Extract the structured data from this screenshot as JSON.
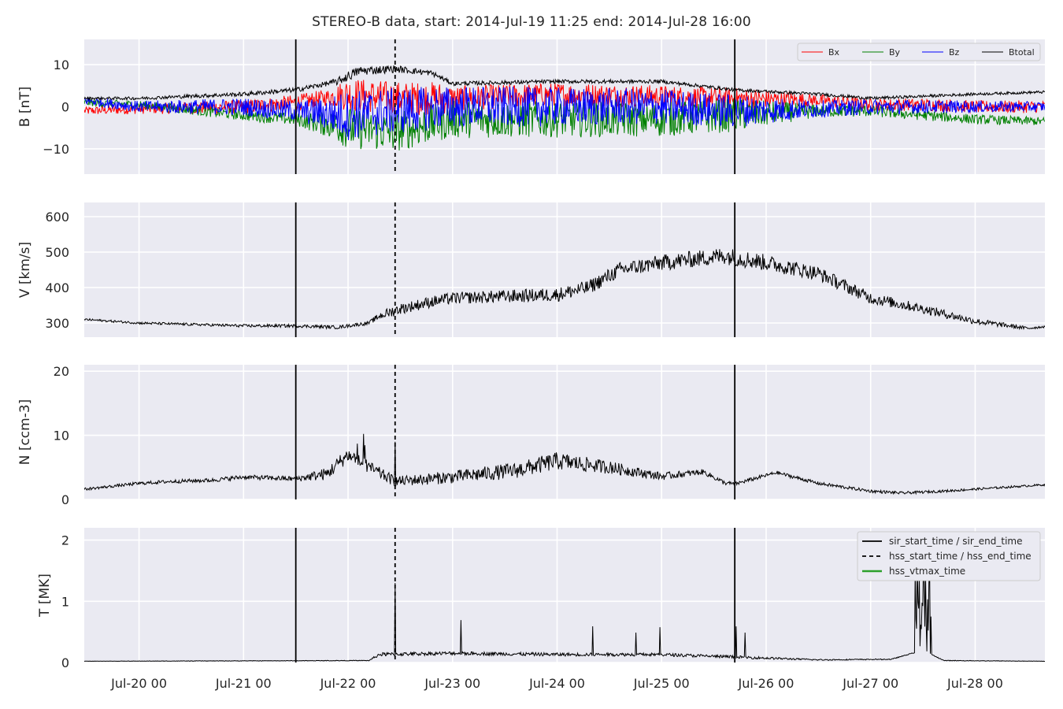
{
  "title": "STEREO-B data, start: 2014-Jul-19 11:25  end: 2014-Jul-28 16:00",
  "chart_data": {
    "type": "line",
    "x_axis": {
      "unit": "day (Jul 2014)",
      "range": [
        19.476,
        28.667
      ],
      "ticks": [
        20,
        21,
        22,
        23,
        24,
        25,
        26,
        27,
        28
      ],
      "tick_labels": [
        "Jul-20 00",
        "Jul-21 00",
        "Jul-22 00",
        "Jul-23 00",
        "Jul-24 00",
        "Jul-25 00",
        "Jul-26 00",
        "Jul-27 00",
        "Jul-28 00"
      ]
    },
    "markers": [
      {
        "label": "sir_start_time / sir_end_time",
        "style": "solid",
        "color": "#000000",
        "times": [
          21.5,
          25.7
        ]
      },
      {
        "label": "hss_start_time / hss_end_time",
        "style": "dashed",
        "color": "#000000",
        "times": [
          22.45
        ]
      },
      {
        "label": "hss_vtmax_time",
        "style": "solid",
        "color": "#2ca02c",
        "times": []
      }
    ],
    "panels": [
      {
        "id": "B",
        "ylabel": "B [nT]",
        "ylim": [
          -16,
          16
        ],
        "yticks": [
          -10,
          0,
          10
        ],
        "ytick_labels": [
          "−10",
          "0",
          "10"
        ],
        "legend": "top-right-row",
        "series": [
          {
            "name": "Bx",
            "color": "#ff0000",
            "base": [
              [
                19.48,
                -1
              ],
              [
                20,
                -0.5
              ],
              [
                21,
                0
              ],
              [
                21.5,
                1
              ],
              [
                22,
                3
              ],
              [
                22.45,
                2
              ],
              [
                23,
                2
              ],
              [
                24,
                3
              ],
              [
                25,
                2.5
              ],
              [
                25.7,
                2
              ],
              [
                26.5,
                1.5
              ],
              [
                27,
                0.5
              ],
              [
                27.5,
                0.5
              ],
              [
                28,
                0
              ],
              [
                28.67,
                0
              ]
            ],
            "noise": [
              [
                19.48,
                1
              ],
              [
                21.8,
                2
              ],
              [
                22,
                4
              ],
              [
                22.9,
                4
              ],
              [
                23,
                3
              ],
              [
                25.7,
                2.5
              ],
              [
                26.5,
                1.5
              ],
              [
                28.67,
                1.5
              ]
            ]
          },
          {
            "name": "By",
            "color": "#008000",
            "base": [
              [
                19.48,
                1
              ],
              [
                20,
                0.5
              ],
              [
                21,
                -2
              ],
              [
                21.5,
                -3
              ],
              [
                22,
                -5
              ],
              [
                22.45,
                -6
              ],
              [
                23,
                -3
              ],
              [
                24,
                -3
              ],
              [
                25,
                -3
              ],
              [
                25.7,
                -2
              ],
              [
                26.5,
                -1
              ],
              [
                27,
                -1
              ],
              [
                27.5,
                -2
              ],
              [
                28,
                -3
              ],
              [
                28.67,
                -3.5
              ]
            ],
            "noise": [
              [
                19.48,
                0.8
              ],
              [
                21.5,
                1.5
              ],
              [
                21.8,
                3
              ],
              [
                22,
                5
              ],
              [
                23,
                4.5
              ],
              [
                25.7,
                4
              ],
              [
                26.5,
                1.5
              ],
              [
                28.67,
                1
              ]
            ]
          },
          {
            "name": "Bz",
            "color": "#0000ff",
            "base": [
              [
                19.48,
                1.5
              ],
              [
                20,
                0
              ],
              [
                21,
                0
              ],
              [
                21.5,
                -1
              ],
              [
                22,
                -2
              ],
              [
                22.45,
                -1
              ],
              [
                23,
                0
              ],
              [
                24,
                0
              ],
              [
                25,
                0
              ],
              [
                25.7,
                -1
              ],
              [
                26.5,
                -0.5
              ],
              [
                27,
                0
              ],
              [
                28,
                0
              ],
              [
                28.67,
                0
              ]
            ],
            "noise": [
              [
                19.48,
                1
              ],
              [
                21.5,
                2.5
              ],
              [
                21.8,
                4
              ],
              [
                22,
                6
              ],
              [
                23,
                5
              ],
              [
                25.7,
                4
              ],
              [
                26.5,
                2
              ],
              [
                28.67,
                1.2
              ]
            ]
          },
          {
            "name": "Btotal",
            "color": "#000000",
            "base": [
              [
                19.48,
                2
              ],
              [
                20,
                2
              ],
              [
                21,
                3
              ],
              [
                21.5,
                4
              ],
              [
                21.9,
                6
              ],
              [
                22.1,
                8.5
              ],
              [
                22.45,
                9
              ],
              [
                22.8,
                8
              ],
              [
                23,
                5.5
              ],
              [
                24,
                6
              ],
              [
                25,
                6
              ],
              [
                25.7,
                4
              ],
              [
                26.5,
                3
              ],
              [
                27,
                2
              ],
              [
                28,
                3
              ],
              [
                28.67,
                3.5
              ]
            ],
            "noise": [
              [
                19.48,
                0.3
              ],
              [
                21.8,
                0.6
              ],
              [
                22,
                1.2
              ],
              [
                23,
                0.5
              ],
              [
                28.67,
                0.3
              ]
            ]
          }
        ]
      },
      {
        "id": "V",
        "ylabel": "V [km/s]",
        "ylim": [
          260,
          640
        ],
        "yticks": [
          300,
          400,
          500,
          600
        ],
        "ytick_labels": [
          "300",
          "400",
          "500",
          "600"
        ],
        "series": [
          {
            "name": "V",
            "color": "#000000",
            "base": [
              [
                19.48,
                310
              ],
              [
                20,
                300
              ],
              [
                21,
                292
              ],
              [
                21.5,
                292
              ],
              [
                21.9,
                288
              ],
              [
                22.2,
                300
              ],
              [
                22.3,
                320
              ],
              [
                22.5,
                340
              ],
              [
                22.8,
                360
              ],
              [
                23,
                370
              ],
              [
                23.5,
                375
              ],
              [
                24,
                380
              ],
              [
                24.3,
                400
              ],
              [
                24.6,
                450
              ],
              [
                25,
                470
              ],
              [
                25.3,
                480
              ],
              [
                25.6,
                490
              ],
              [
                26,
                470
              ],
              [
                26.5,
                440
              ],
              [
                27,
                370
              ],
              [
                27.5,
                340
              ],
              [
                28,
                305
              ],
              [
                28.5,
                285
              ],
              [
                28.67,
                290
              ]
            ],
            "noise": [
              [
                19.48,
                3
              ],
              [
                22.2,
                5
              ],
              [
                22.4,
                15
              ],
              [
                25.8,
                25
              ],
              [
                27.7,
                12
              ],
              [
                28.67,
                3
              ]
            ]
          }
        ]
      },
      {
        "id": "N",
        "ylabel": "N [ccm-3]",
        "ylim": [
          0,
          21
        ],
        "yticks": [
          0,
          10,
          20
        ],
        "ytick_labels": [
          "0",
          "10",
          "20"
        ],
        "series": [
          {
            "name": "N",
            "color": "#000000",
            "base": [
              [
                19.48,
                1.6
              ],
              [
                20,
                2.5
              ],
              [
                20.3,
                2.8
              ],
              [
                20.7,
                3
              ],
              [
                21,
                3.5
              ],
              [
                21.5,
                3.2
              ],
              [
                21.8,
                4
              ],
              [
                22,
                7
              ],
              [
                22.2,
                5
              ],
              [
                22.45,
                2.8
              ],
              [
                23,
                3.5
              ],
              [
                23.6,
                4.5
              ],
              [
                24,
                6
              ],
              [
                24.5,
                5
              ],
              [
                25,
                3.6
              ],
              [
                25.4,
                4.3
              ],
              [
                25.6,
                2.6
              ],
              [
                25.7,
                2.4
              ],
              [
                26.1,
                4.2
              ],
              [
                26.5,
                2.5
              ],
              [
                27,
                1.3
              ],
              [
                27.3,
                1
              ],
              [
                27.7,
                1.3
              ],
              [
                28,
                1.6
              ],
              [
                28.67,
                2.3
              ]
            ],
            "noise": [
              [
                19.48,
                0.2
              ],
              [
                21.5,
                0.4
              ],
              [
                21.9,
                1.2
              ],
              [
                22.5,
                0.8
              ],
              [
                24,
                1.4
              ],
              [
                25,
                0.6
              ],
              [
                25.7,
                0.3
              ],
              [
                28.67,
                0.15
              ]
            ]
          }
        ]
      },
      {
        "id": "T",
        "ylabel": "T [MK]",
        "ylim": [
          0,
          2.2
        ],
        "yticks": [
          0,
          1,
          2
        ],
        "ytick_labels": [
          "0",
          "1",
          "2"
        ],
        "legend": "top-right",
        "series": [
          {
            "name": "T",
            "color": "#000000",
            "base": [
              [
                19.48,
                0.02
              ],
              [
                22.2,
                0.03
              ],
              [
                22.3,
                0.12
              ],
              [
                23,
                0.14
              ],
              [
                24,
                0.12
              ],
              [
                25,
                0.12
              ],
              [
                25.7,
                0.08
              ],
              [
                26.5,
                0.04
              ],
              [
                27.2,
                0.05
              ],
              [
                27.5,
                0.2
              ],
              [
                27.7,
                0.03
              ],
              [
                28.67,
                0.02
              ]
            ],
            "noise": [
              [
                19.48,
                0.005
              ],
              [
                22.2,
                0.01
              ],
              [
                22.3,
                0.06
              ],
              [
                25.7,
                0.05
              ],
              [
                26.5,
                0.02
              ],
              [
                28.67,
                0.005
              ]
            ]
          }
        ]
      }
    ]
  }
}
